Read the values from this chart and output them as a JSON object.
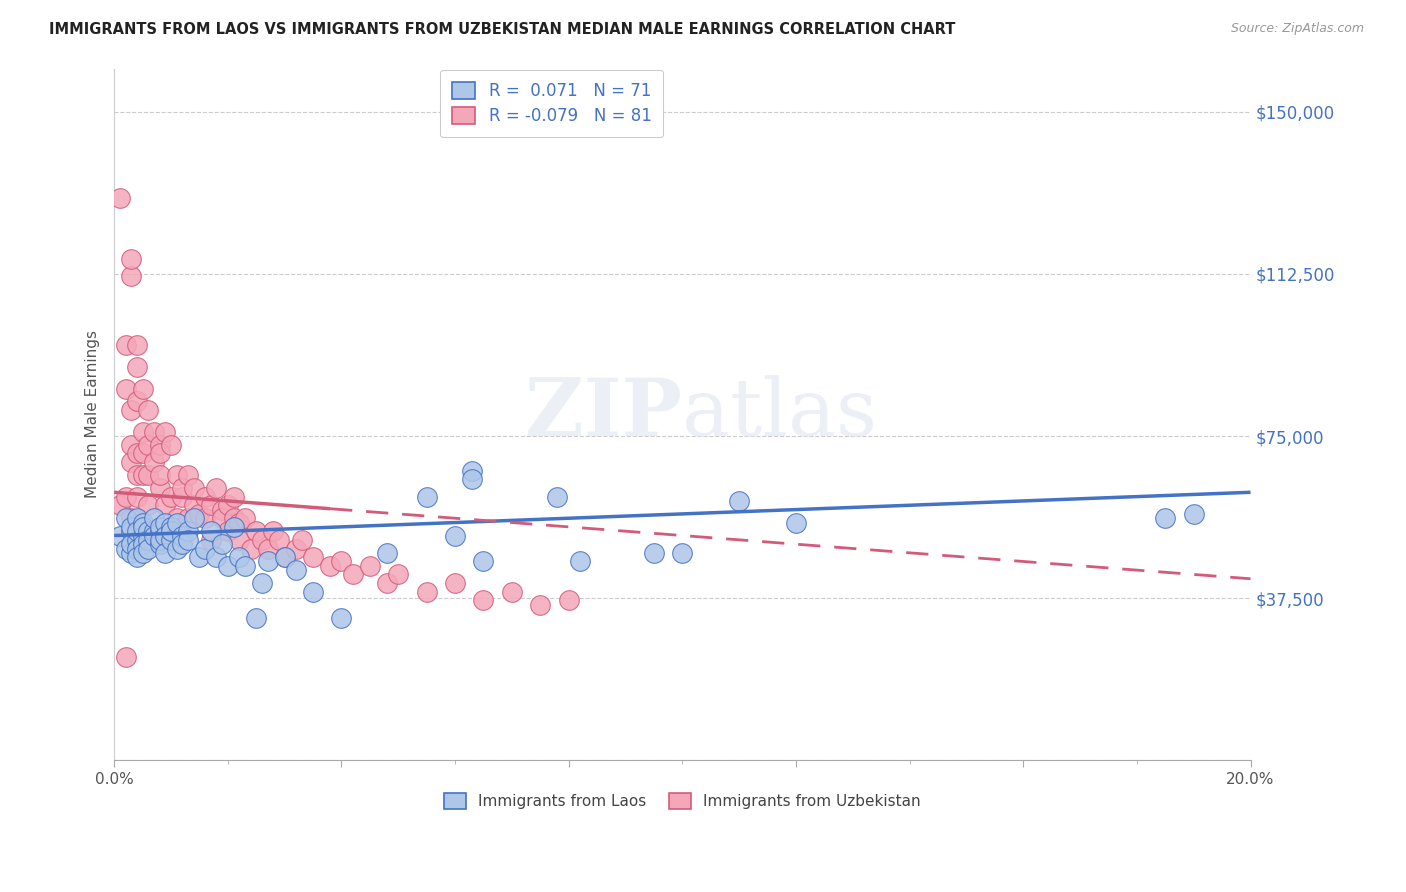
{
  "title": "IMMIGRANTS FROM LAOS VS IMMIGRANTS FROM UZBEKISTAN MEDIAN MALE EARNINGS CORRELATION CHART",
  "source": "Source: ZipAtlas.com",
  "ylabel": "Median Male Earnings",
  "ytick_vals": [
    0,
    37500,
    75000,
    112500,
    150000
  ],
  "ytick_labels": [
    "",
    "$37,500",
    "$75,000",
    "$112,500",
    "$150,000"
  ],
  "xmin": 0.0,
  "xmax": 0.2,
  "ymin": 0,
  "ymax": 160000,
  "watermark": "ZIPatlas",
  "color_laos_fill": "#aec6e8",
  "color_laos_edge": "#4472c4",
  "color_uzbek_fill": "#f4a7b9",
  "color_uzbek_edge": "#d45a7a",
  "color_laos_line": "#4472c4",
  "color_uzbek_line": "#d45a7a",
  "color_ytick": "#4472c4",
  "laos_x": [
    0.001,
    0.002,
    0.002,
    0.003,
    0.003,
    0.003,
    0.003,
    0.004,
    0.004,
    0.004,
    0.004,
    0.004,
    0.005,
    0.005,
    0.005,
    0.005,
    0.005,
    0.006,
    0.006,
    0.006,
    0.007,
    0.007,
    0.007,
    0.008,
    0.008,
    0.008,
    0.008,
    0.009,
    0.009,
    0.009,
    0.01,
    0.01,
    0.01,
    0.011,
    0.011,
    0.012,
    0.012,
    0.013,
    0.013,
    0.014,
    0.015,
    0.016,
    0.017,
    0.018,
    0.019,
    0.02,
    0.021,
    0.022,
    0.023,
    0.025,
    0.026,
    0.027,
    0.03,
    0.032,
    0.035,
    0.04,
    0.048,
    0.055,
    0.06,
    0.063,
    0.063,
    0.065,
    0.078,
    0.082,
    0.095,
    0.1,
    0.11,
    0.12,
    0.185,
    0.19
  ],
  "laos_y": [
    52000,
    56000,
    49000,
    53000,
    48000,
    54000,
    50000,
    56000,
    51000,
    49000,
    53000,
    47000,
    55000,
    52000,
    50000,
    54000,
    48000,
    53000,
    51000,
    49000,
    53000,
    56000,
    52000,
    53000,
    54000,
    50000,
    51000,
    55000,
    52000,
    48000,
    54000,
    51000,
    53000,
    49000,
    55000,
    52000,
    50000,
    53000,
    51000,
    56000,
    47000,
    49000,
    53000,
    47000,
    50000,
    45000,
    54000,
    47000,
    45000,
    33000,
    41000,
    46000,
    47000,
    44000,
    39000,
    33000,
    48000,
    61000,
    52000,
    67000,
    65000,
    46000,
    61000,
    46000,
    48000,
    48000,
    60000,
    55000,
    56000,
    57000
  ],
  "uzbek_x": [
    0.001,
    0.001,
    0.002,
    0.002,
    0.002,
    0.003,
    0.003,
    0.003,
    0.003,
    0.003,
    0.003,
    0.004,
    0.004,
    0.004,
    0.004,
    0.004,
    0.004,
    0.005,
    0.005,
    0.005,
    0.005,
    0.006,
    0.006,
    0.006,
    0.006,
    0.007,
    0.007,
    0.008,
    0.008,
    0.008,
    0.008,
    0.009,
    0.009,
    0.01,
    0.01,
    0.011,
    0.011,
    0.012,
    0.012,
    0.013,
    0.013,
    0.014,
    0.014,
    0.015,
    0.016,
    0.016,
    0.017,
    0.017,
    0.018,
    0.019,
    0.019,
    0.02,
    0.02,
    0.021,
    0.021,
    0.022,
    0.022,
    0.023,
    0.024,
    0.025,
    0.026,
    0.027,
    0.028,
    0.029,
    0.03,
    0.032,
    0.033,
    0.035,
    0.038,
    0.04,
    0.042,
    0.045,
    0.048,
    0.05,
    0.055,
    0.06,
    0.065,
    0.07,
    0.075,
    0.08,
    0.002
  ],
  "uzbek_y": [
    130000,
    59000,
    86000,
    96000,
    61000,
    112000,
    116000,
    73000,
    69000,
    81000,
    56000,
    91000,
    71000,
    83000,
    66000,
    96000,
    61000,
    76000,
    86000,
    66000,
    71000,
    73000,
    81000,
    59000,
    66000,
    69000,
    76000,
    73000,
    63000,
    71000,
    66000,
    59000,
    76000,
    61000,
    73000,
    66000,
    56000,
    61000,
    63000,
    66000,
    56000,
    59000,
    63000,
    57000,
    61000,
    56000,
    59000,
    51000,
    63000,
    58000,
    56000,
    59000,
    53000,
    56000,
    61000,
    55000,
    51000,
    56000,
    49000,
    53000,
    51000,
    49000,
    53000,
    51000,
    47000,
    49000,
    51000,
    47000,
    45000,
    46000,
    43000,
    45000,
    41000,
    43000,
    39000,
    41000,
    37000,
    39000,
    36000,
    37000,
    24000
  ]
}
